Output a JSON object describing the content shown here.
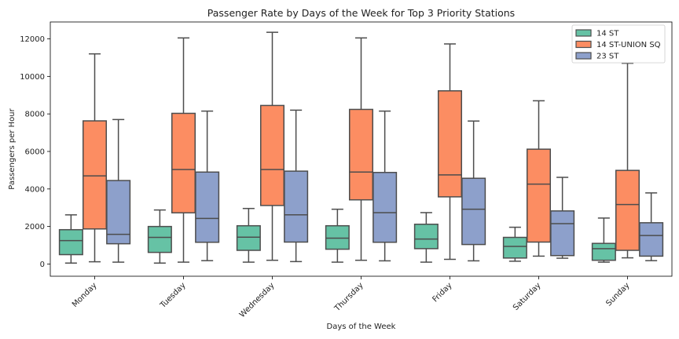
{
  "chart_data": {
    "type": "box",
    "title": "Passenger Rate by Days of the Week for Top 3 Priority Stations",
    "xlabel": "Days of the Week",
    "ylabel": "Passengers per Hour",
    "ylim": [
      -650,
      12900
    ],
    "yticks": [
      0,
      2000,
      4000,
      6000,
      8000,
      10000,
      12000
    ],
    "ytick_labels": [
      "0",
      "2000",
      "4000",
      "6000",
      "8000",
      "10000",
      "12000"
    ],
    "categories": [
      "Monday",
      "Tuesday",
      "Wednesday",
      "Thursday",
      "Friday",
      "Saturday",
      "Sunday"
    ],
    "legend_position": "top-right",
    "grid": false,
    "series": [
      {
        "name": "14 ST",
        "color": "#66c2a5",
        "boxes": [
          {
            "whislo": 50,
            "q1": 500,
            "med": 1250,
            "q3": 1830,
            "whishi": 2620
          },
          {
            "whislo": 50,
            "q1": 620,
            "med": 1420,
            "q3": 2000,
            "whishi": 2880
          },
          {
            "whislo": 100,
            "q1": 730,
            "med": 1430,
            "q3": 2040,
            "whishi": 2960
          },
          {
            "whislo": 100,
            "q1": 790,
            "med": 1380,
            "q3": 2040,
            "whishi": 2920
          },
          {
            "whislo": 100,
            "q1": 820,
            "med": 1330,
            "q3": 2120,
            "whishi": 2740
          },
          {
            "whislo": 150,
            "q1": 320,
            "med": 940,
            "q3": 1420,
            "whishi": 1960
          },
          {
            "whislo": 100,
            "q1": 200,
            "med": 820,
            "q3": 1100,
            "whishi": 2450
          }
        ]
      },
      {
        "name": "14 ST-UNION SQ",
        "color": "#fc8d62",
        "boxes": [
          {
            "whislo": 120,
            "q1": 1870,
            "med": 4700,
            "q3": 7630,
            "whishi": 11200
          },
          {
            "whislo": 100,
            "q1": 2730,
            "med": 5040,
            "q3": 8030,
            "whishi": 12050
          },
          {
            "whislo": 200,
            "q1": 3120,
            "med": 5040,
            "q3": 8450,
            "whishi": 12350
          },
          {
            "whislo": 200,
            "q1": 3420,
            "med": 4900,
            "q3": 8240,
            "whishi": 12050
          },
          {
            "whislo": 250,
            "q1": 3580,
            "med": 4750,
            "q3": 9230,
            "whishi": 11730
          },
          {
            "whislo": 420,
            "q1": 1170,
            "med": 4260,
            "q3": 6120,
            "whishi": 8700
          },
          {
            "whislo": 330,
            "q1": 730,
            "med": 3170,
            "q3": 4990,
            "whishi": 10700
          }
        ]
      },
      {
        "name": "23 ST",
        "color": "#8da0cb",
        "boxes": [
          {
            "whislo": 100,
            "q1": 1080,
            "med": 1580,
            "q3": 4450,
            "whishi": 7700
          },
          {
            "whislo": 180,
            "q1": 1160,
            "med": 2430,
            "q3": 4900,
            "whishi": 8150
          },
          {
            "whislo": 130,
            "q1": 1170,
            "med": 2620,
            "q3": 4950,
            "whishi": 8200
          },
          {
            "whislo": 170,
            "q1": 1160,
            "med": 2740,
            "q3": 4880,
            "whishi": 8150
          },
          {
            "whislo": 170,
            "q1": 1040,
            "med": 2920,
            "q3": 4570,
            "whishi": 7620
          },
          {
            "whislo": 310,
            "q1": 450,
            "med": 2150,
            "q3": 2830,
            "whishi": 4620
          },
          {
            "whislo": 180,
            "q1": 420,
            "med": 1520,
            "q3": 2200,
            "whishi": 3790
          }
        ]
      }
    ]
  }
}
